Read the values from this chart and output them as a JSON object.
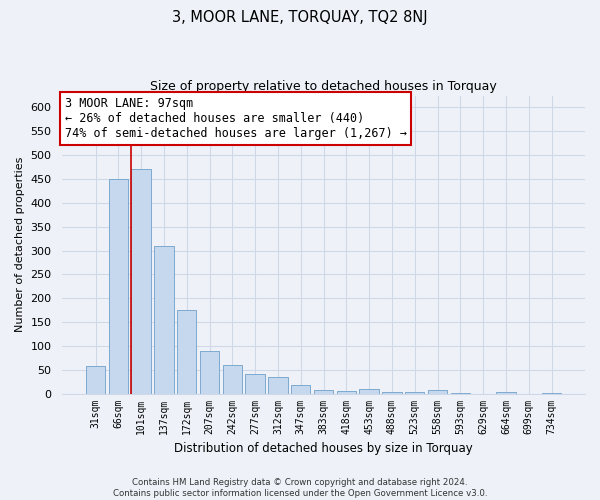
{
  "title": "3, MOOR LANE, TORQUAY, TQ2 8NJ",
  "subtitle": "Size of property relative to detached houses in Torquay",
  "xlabel": "Distribution of detached houses by size in Torquay",
  "ylabel": "Number of detached properties",
  "bar_labels": [
    "31sqm",
    "66sqm",
    "101sqm",
    "137sqm",
    "172sqm",
    "207sqm",
    "242sqm",
    "277sqm",
    "312sqm",
    "347sqm",
    "383sqm",
    "418sqm",
    "453sqm",
    "488sqm",
    "523sqm",
    "558sqm",
    "593sqm",
    "629sqm",
    "664sqm",
    "699sqm",
    "734sqm"
  ],
  "bar_values": [
    57,
    450,
    470,
    310,
    175,
    90,
    60,
    42,
    35,
    18,
    8,
    5,
    10,
    3,
    3,
    8,
    1,
    0,
    3,
    0,
    2
  ],
  "bar_color": "#c5d8ee",
  "bar_edge_color": "#6fa0cb",
  "vline_x": 1.575,
  "vline_color": "#cc0000",
  "annotation_title": "3 MOOR LANE: 97sqm",
  "annotation_line1": "← 26% of detached houses are smaller (440)",
  "annotation_line2": "74% of semi-detached houses are larger (1,267) →",
  "annotation_box_color": "#ffffff",
  "annotation_box_edge": "#cc0000",
  "ylim": [
    0,
    625
  ],
  "yticks": [
    0,
    50,
    100,
    150,
    200,
    250,
    300,
    350,
    400,
    450,
    500,
    550,
    600
  ],
  "footer_line1": "Contains HM Land Registry data © Crown copyright and database right 2024.",
  "footer_line2": "Contains public sector information licensed under the Open Government Licence v3.0.",
  "background_color": "#eef2f8",
  "grid_color": "#d0d8e8",
  "title_fontsize": 10.5,
  "subtitle_fontsize": 9
}
